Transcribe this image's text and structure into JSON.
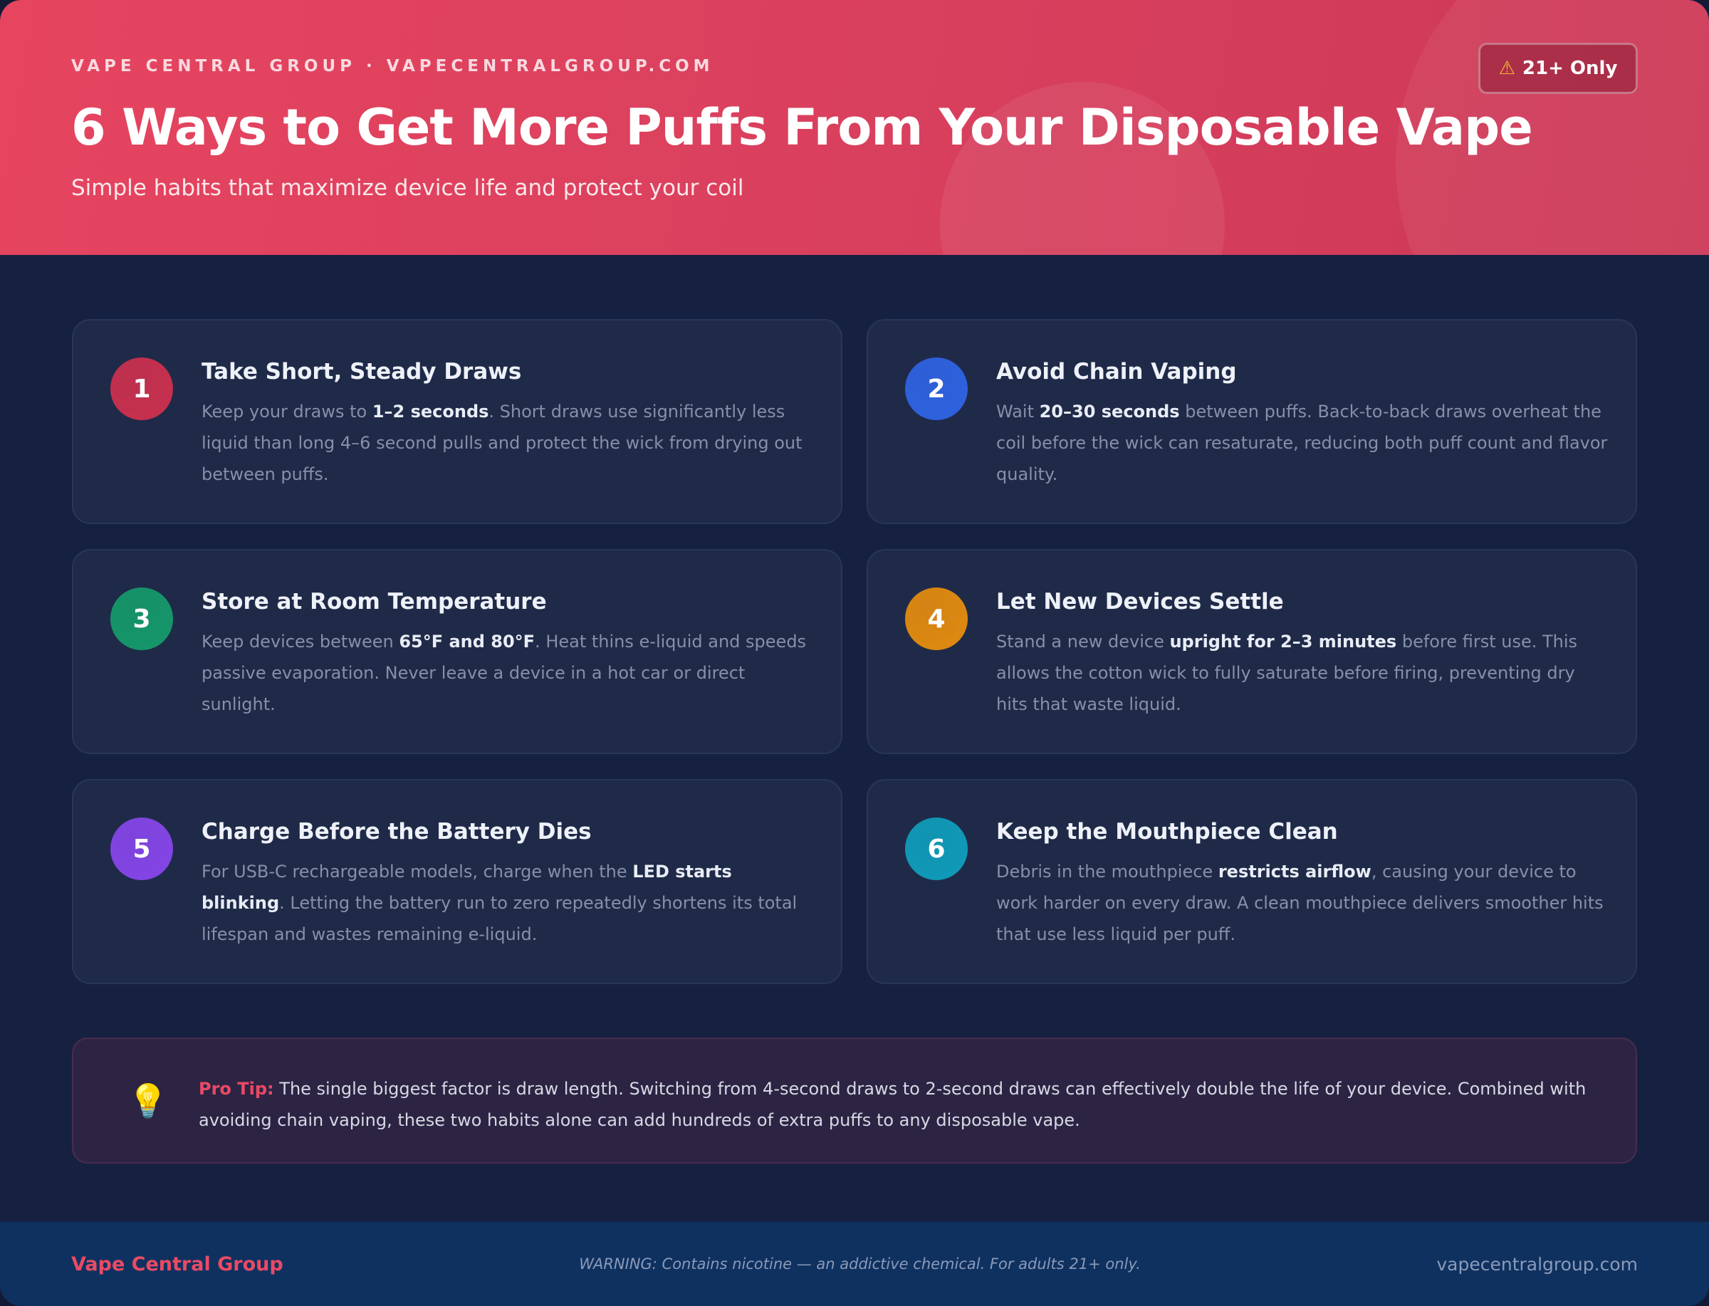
{
  "header": {
    "brandline": "VAPE CENTRAL GROUP · VAPECENTRALGROUP.COM",
    "title": "6 Ways to Get More Puffs From Your Disposable Vape",
    "subtitle": "Simple habits that maximize device life and protect your coil",
    "badge": {
      "icon": "warning-icon",
      "label": "21+ Only"
    }
  },
  "tips": [
    {
      "number": "1",
      "color": "#c8304e",
      "title": "Take Short, Steady Draws",
      "pre": "Keep your draws to ",
      "bold": "1–2 seconds",
      "post": ". Short draws use significantly less liquid than long 4–6 second pulls and protect the wick from drying out between puffs."
    },
    {
      "number": "2",
      "color": "#2f62e0",
      "title": "Avoid Chain Vaping",
      "pre": "Wait ",
      "bold": "20–30 seconds",
      "post": " between puffs. Back-to-back draws overheat the coil before the wick can resaturate, reducing both puff count and flavor quality."
    },
    {
      "number": "3",
      "color": "#16976a",
      "title": "Store at Room Temperature",
      "pre": "Keep devices between ",
      "bold": "65°F and 80°F",
      "post": ". Heat thins e-liquid and speeds passive evaporation. Never leave a device in a hot car or direct sunlight."
    },
    {
      "number": "4",
      "color": "#e08a10",
      "title": "Let New Devices Settle",
      "pre": "Stand a new device ",
      "bold": "upright for 2–3 minutes",
      "post": " before first use. This allows the cotton wick to fully saturate before firing, preventing dry hits that waste liquid."
    },
    {
      "number": "5",
      "color": "#8445e6",
      "title": "Charge Before the Battery Dies",
      "pre": "For USB-C rechargeable models, charge when the ",
      "bold": "LED starts blinking",
      "post": ". Letting the battery run to zero repeatedly shortens its total lifespan and wastes remaining e-liquid."
    },
    {
      "number": "6",
      "color": "#0f9bb8",
      "title": "Keep the Mouthpiece Clean",
      "pre": "Debris in the mouthpiece ",
      "bold": "restricts airflow",
      "post": ", causing your device to work harder on every draw. A clean mouthpiece delivers smoother hits that use less liquid per puff."
    }
  ],
  "pro_tip": {
    "icon": "lightbulb-icon",
    "label": "Pro Tip:",
    "text": " The single biggest factor is draw length. Switching from 4-second draws to 2-second draws can effectively double the life of your device. Combined with avoiding chain vaping, these two habits alone can add hundreds of extra puffs to any disposable vape."
  },
  "footer": {
    "brand": "Vape Central Group",
    "warning": "WARNING: Contains nicotine — an addictive chemical. For adults 21+ only.",
    "url": "vapecentralgroup.com"
  }
}
